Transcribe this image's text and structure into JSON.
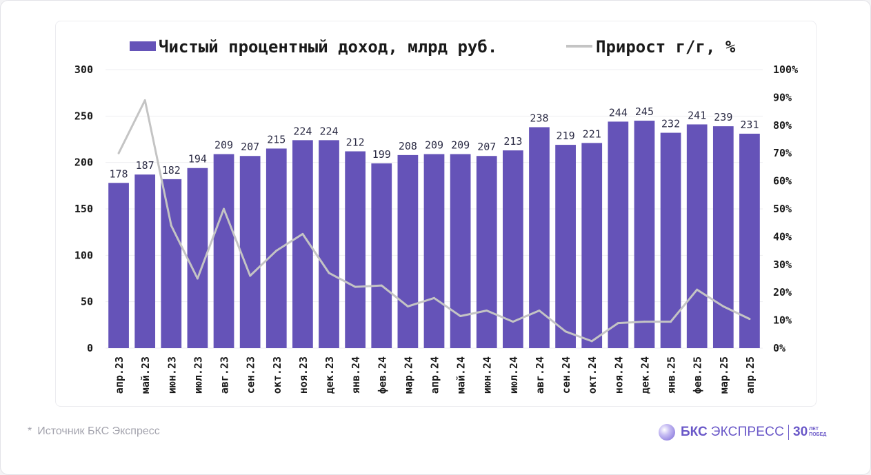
{
  "chart_data": {
    "type": "bar",
    "categories": [
      "апр.23",
      "май.23",
      "июн.23",
      "июл.23",
      "авг.23",
      "сен.23",
      "окт.23",
      "ноя.23",
      "дек.23",
      "янв.24",
      "фев.24",
      "мар.24",
      "апр.24",
      "май.24",
      "июн.24",
      "июл.24",
      "авг.24",
      "сен.24",
      "окт.24",
      "ноя.24",
      "дек.24",
      "янв.25",
      "фев.25",
      "мар.25",
      "апр.25"
    ],
    "series": [
      {
        "name": "Чистый процентный доход, млрд руб.",
        "type": "bar",
        "axis": "left",
        "color": "#6553b8",
        "values": [
          178,
          187,
          182,
          194,
          209,
          207,
          215,
          224,
          224,
          212,
          199,
          208,
          209,
          209,
          207,
          213,
          238,
          219,
          221,
          244,
          245,
          232,
          241,
          239,
          231
        ]
      },
      {
        "name": "Прирост г/г, %",
        "type": "line",
        "axis": "right",
        "color": "#c4c4c4",
        "values": [
          70,
          89,
          44,
          25,
          50,
          26,
          35,
          41,
          27,
          22,
          22.5,
          15,
          18,
          11.5,
          13.5,
          9.5,
          13.5,
          6,
          2.5,
          9,
          9.5,
          9.5,
          21,
          15,
          10.5
        ]
      }
    ],
    "y_left": {
      "range": [
        0,
        300
      ],
      "ticks": [
        "0",
        "50",
        "100",
        "150",
        "200",
        "250",
        "300"
      ]
    },
    "y_right": {
      "range": [
        0,
        100
      ],
      "ticks": [
        "0%",
        "10%",
        "20%",
        "30%",
        "40%",
        "50%",
        "60%",
        "70%",
        "80%",
        "90%",
        "100%"
      ]
    },
    "legend_position": "top",
    "grid": true
  },
  "footnote": {
    "star": "*",
    "text": "Источник БКС Экспресс"
  },
  "logo": {
    "bks": "БКС",
    "express": "ЭКСПРЕСС",
    "num": "30",
    "small1": "ЛЕТ",
    "small2": "ПОБЕД"
  }
}
